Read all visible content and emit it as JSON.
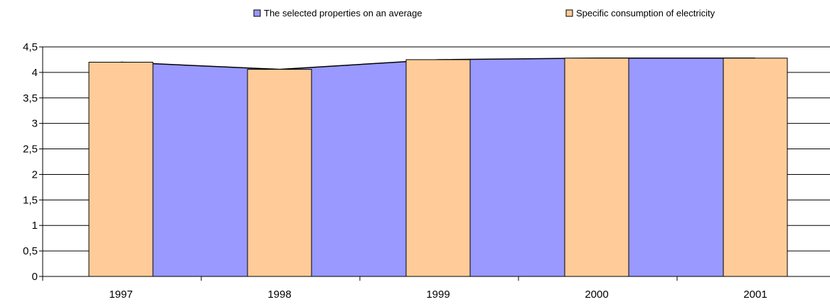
{
  "chart_data": {
    "type": "area",
    "title": "",
    "xlabel": "",
    "ylabel": "",
    "categories": [
      "1997",
      "1998",
      "1999",
      "2000",
      "2001"
    ],
    "ylim": [
      0,
      4.5
    ],
    "yticks": [
      "0",
      "0,5",
      "1",
      "1,5",
      "2",
      "2,5",
      "3",
      "3,5",
      "4",
      "4,5"
    ],
    "grid": true,
    "legend_position": "top",
    "series": [
      {
        "name": "The selected properties on an average",
        "type": "area",
        "color": "#9999ff",
        "values": [
          4.2,
          4.06,
          4.25,
          4.28,
          4.28
        ]
      },
      {
        "name": "Specific consumption of electricity",
        "type": "bar",
        "color": "#ffcc99",
        "values": [
          4.2,
          4.06,
          4.25,
          4.28,
          4.28
        ]
      }
    ]
  }
}
